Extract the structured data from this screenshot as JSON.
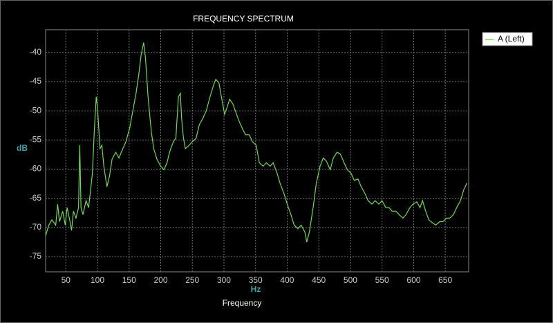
{
  "chart_data": {
    "type": "line",
    "title": "FREQUENCY SPECTRUM",
    "x_label": "Hz",
    "x_sublabel": "Frequency",
    "y_label": "dB",
    "x": [
      18,
      23,
      28,
      34,
      37,
      40,
      45,
      49,
      52,
      56,
      59,
      62,
      66,
      70,
      72,
      74,
      77,
      82,
      86,
      92,
      95,
      98,
      100,
      104,
      107,
      110,
      115,
      119,
      123,
      129,
      134,
      140,
      145,
      151,
      156,
      161,
      165,
      169,
      173,
      176,
      180,
      185,
      189,
      194,
      200,
      205,
      210,
      214,
      220,
      224,
      228,
      231,
      233,
      236,
      239,
      245,
      250,
      256,
      261,
      267,
      272,
      278,
      283,
      287,
      292,
      296,
      301,
      305,
      309,
      314,
      318,
      324,
      329,
      334,
      340,
      345,
      351,
      356,
      362,
      367,
      373,
      378,
      384,
      389,
      395,
      400,
      406,
      411,
      417,
      422,
      428,
      431,
      435,
      441,
      446,
      452,
      457,
      462,
      468,
      473,
      479,
      484,
      490,
      495,
      501,
      506,
      512,
      517,
      523,
      528,
      534,
      539,
      545,
      550,
      556,
      561,
      566,
      572,
      577,
      583,
      588,
      594,
      599,
      605,
      610,
      614,
      619,
      624,
      630,
      635,
      641,
      646,
      652,
      657,
      663,
      668,
      674,
      679,
      684
    ],
    "series": [
      {
        "name": "A (Left)",
        "color": "#6fdc4a",
        "values": [
          -71.4,
          -69.6,
          -68.7,
          -69.6,
          -66,
          -69,
          -67.2,
          -69.6,
          -66.6,
          -68.7,
          -70.5,
          -67.2,
          -68.4,
          -66.6,
          -55.9,
          -66.6,
          -67.8,
          -65.4,
          -66.6,
          -60.7,
          -53.5,
          -47.6,
          -49.4,
          -56.5,
          -55.9,
          -59.5,
          -63,
          -61.2,
          -58.3,
          -57.1,
          -58.1,
          -56.5,
          -55.3,
          -52.9,
          -50,
          -47,
          -44,
          -40.5,
          -38.3,
          -41,
          -47.6,
          -53.5,
          -56.5,
          -58.3,
          -59.5,
          -60.1,
          -58.9,
          -57.1,
          -55.3,
          -54.7,
          -47.6,
          -47,
          -51.2,
          -54.7,
          -56.5,
          -55.9,
          -55.3,
          -54.7,
          -52.4,
          -51.2,
          -50,
          -47.6,
          -45.8,
          -44.6,
          -45.2,
          -47.6,
          -50.6,
          -49.4,
          -48,
          -48.8,
          -50,
          -51.8,
          -53,
          -54.1,
          -54.1,
          -55.3,
          -55.9,
          -58.9,
          -59.5,
          -58.9,
          -59.5,
          -58.9,
          -60.7,
          -62.5,
          -64.2,
          -66,
          -67.8,
          -69.6,
          -70.2,
          -69.6,
          -70.8,
          -72.5,
          -70.8,
          -66.6,
          -62.5,
          -59.5,
          -58.1,
          -58.6,
          -60.1,
          -58.1,
          -57.1,
          -57.4,
          -58.9,
          -60.1,
          -60.7,
          -61.9,
          -61.7,
          -63,
          -64.2,
          -65.4,
          -66,
          -65.4,
          -66,
          -65.4,
          -66.6,
          -66.6,
          -67.2,
          -67.2,
          -67.8,
          -68.4,
          -67.8,
          -66.6,
          -66,
          -65.6,
          -66.6,
          -65.4,
          -67.2,
          -68.7,
          -69.2,
          -69.6,
          -69,
          -69,
          -68.4,
          -68.4,
          -67.8,
          -66.6,
          -65.4,
          -63.6,
          -62.4
        ]
      }
    ],
    "xlim": [
      18,
      687
    ],
    "ylim": [
      -77.6,
      -36.1
    ],
    "xticks": [
      50,
      100,
      150,
      200,
      250,
      300,
      350,
      400,
      450,
      500,
      550,
      600,
      650
    ],
    "yticks": [
      -40,
      -45,
      -50,
      -55,
      -60,
      -65,
      -70,
      -75
    ],
    "grid": true,
    "legend": "top-right"
  }
}
